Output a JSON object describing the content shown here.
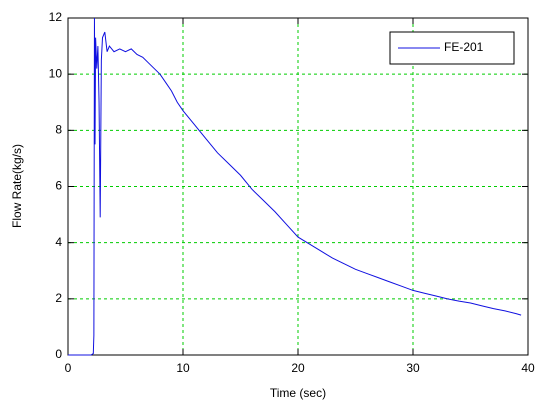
{
  "chart_data": {
    "type": "line",
    "x_label": "Time (sec)",
    "y_label": "Flow Rate(kg/s)",
    "x": [
      0,
      0.5,
      1,
      1.5,
      2,
      2.2,
      2.25,
      2.3,
      2.35,
      2.4,
      2.5,
      2.6,
      2.7,
      2.8,
      2.9,
      3.0,
      3.2,
      3.4,
      3.6,
      4,
      4.5,
      5,
      5.5,
      6,
      6.5,
      7,
      7.5,
      8,
      8.5,
      9,
      9.5,
      10,
      11,
      12,
      13,
      14,
      15,
      16,
      17,
      18,
      19,
      20,
      21,
      22,
      23,
      24,
      25,
      26,
      27,
      28,
      29,
      30,
      31,
      32,
      33,
      34,
      35,
      36,
      37,
      38,
      39,
      39.4
    ],
    "series": [
      {
        "name": "FE-201",
        "color": "#1010e0",
        "values": [
          0,
          0,
          0,
          0,
          0,
          0.05,
          0.7,
          12,
          7.5,
          11.3,
          10.2,
          11,
          9,
          4.9,
          10.5,
          11.3,
          11.5,
          10.8,
          11,
          10.8,
          10.9,
          10.8,
          10.9,
          10.7,
          10.6,
          10.4,
          10.2,
          10.0,
          9.7,
          9.4,
          9.0,
          8.7,
          8.2,
          7.7,
          7.2,
          6.8,
          6.4,
          5.9,
          5.5,
          5.1,
          4.65,
          4.2,
          3.95,
          3.7,
          3.45,
          3.25,
          3.05,
          2.9,
          2.75,
          2.6,
          2.45,
          2.3,
          2.2,
          2.1,
          2.0,
          1.92,
          1.85,
          1.75,
          1.65,
          1.57,
          1.47,
          1.42
        ]
      }
    ],
    "xlim": [
      0,
      40
    ],
    "xticks": [
      0,
      10,
      20,
      30,
      40
    ],
    "ylim": [
      0,
      12
    ],
    "yticks": [
      0,
      2,
      4,
      6,
      8,
      10,
      12
    ],
    "grid": true,
    "grid_color": "#00cc00",
    "legend": "upper-right"
  }
}
